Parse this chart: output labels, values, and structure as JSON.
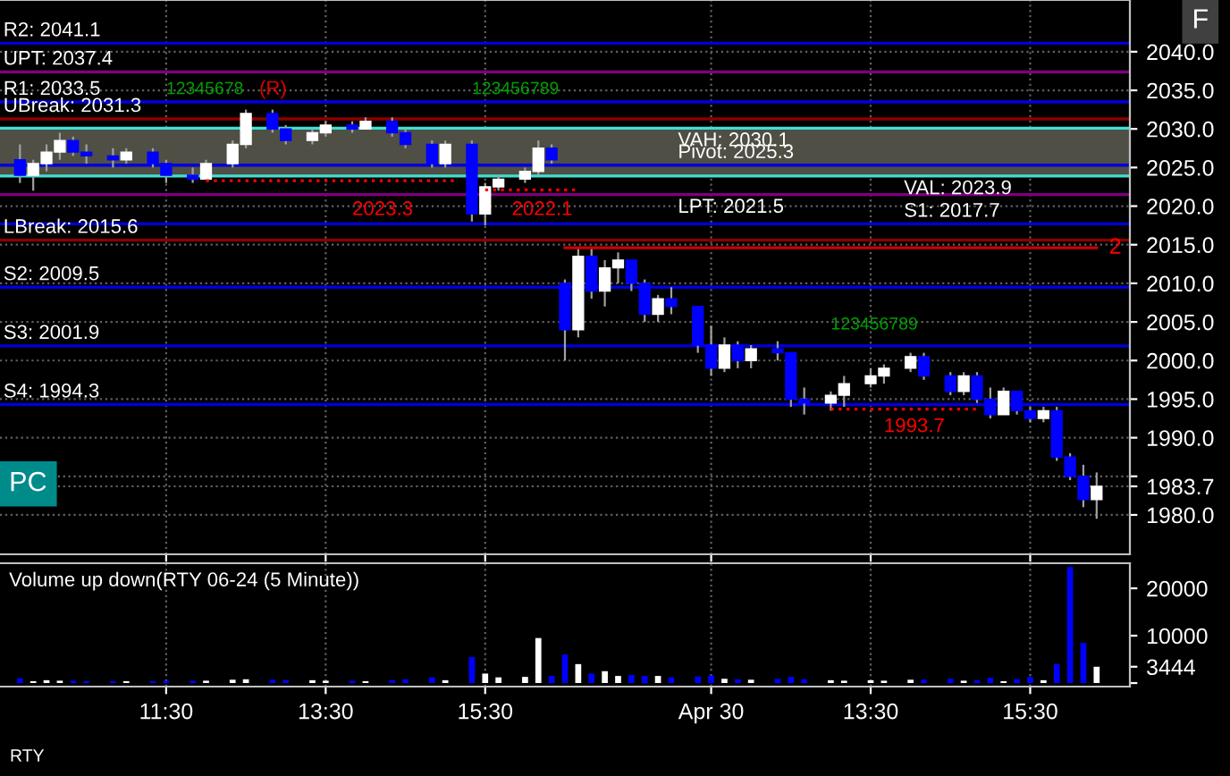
{
  "chart_data": [
    {
      "type": "candlestick",
      "categories": [
        null,
        null,
        null,
        null,
        null,
        null,
        null,
        null,
        null,
        null,
        null,
        null,
        null,
        null,
        null,
        null,
        null,
        null,
        null,
        null,
        null,
        null,
        null,
        null,
        null,
        null,
        null,
        null,
        null,
        null,
        null,
        null,
        null,
        null,
        null,
        null,
        null,
        null,
        null,
        null,
        null,
        null,
        null,
        null,
        null,
        null,
        null,
        null,
        null,
        null,
        null,
        null,
        null,
        null,
        null,
        null,
        null,
        null,
        null,
        null,
        null,
        null,
        null,
        null,
        null,
        null,
        null,
        null,
        null,
        null,
        null,
        null,
        null,
        null,
        null,
        null,
        null,
        null,
        null,
        null,
        null,
        null,
        null,
        null,
        null
      ],
      "ylim": [
        1974.9,
        2046.7
      ],
      "yticks": [
        {
          "value": 1980,
          "label": "1980.0"
        },
        {
          "value": 1983.7,
          "label": "1983.7"
        },
        {
          "value": 1985,
          "label": null
        },
        {
          "value": 1990,
          "label": "1990.0"
        },
        {
          "value": 1995,
          "label": "1995.0"
        },
        {
          "value": 2000,
          "label": "2000.0"
        },
        {
          "value": 2005,
          "label": "2005.0"
        },
        {
          "value": 2010,
          "label": "2010.0"
        },
        {
          "value": 2015,
          "label": "2015.0"
        },
        {
          "value": 2020,
          "label": "2020.0"
        },
        {
          "value": 2025,
          "label": "2025.0"
        },
        {
          "value": 2030,
          "label": "2030.0"
        },
        {
          "value": 2035,
          "label": "2035.0"
        },
        {
          "value": 2040,
          "label": "2040.0"
        }
      ],
      "tick_labels": "y",
      "grid": true,
      "series": [
        {
          "ohlc": [
            null,
            [
              2026,
              2028,
              2023,
              2024
            ],
            [
              2024,
              2026,
              2022,
              2025.5
            ],
            [
              2025.5,
              2028,
              2024.5,
              2027
            ],
            [
              2027,
              2029.5,
              2026,
              2028.5
            ],
            [
              2028.5,
              2029,
              2026.5,
              2027
            ],
            [
              2027,
              2028,
              2025.5,
              2026.5
            ],
            null,
            [
              2026.5,
              2027.5,
              2025,
              2026
            ],
            [
              2026,
              2027.5,
              2025.5,
              2027
            ],
            null,
            [
              2027,
              2027.5,
              2025,
              2025.5
            ],
            [
              2025.5,
              2026,
              2023,
              2024
            ],
            null,
            [
              2024,
              2025,
              2023,
              2023.5
            ],
            [
              2023.5,
              2026,
              2023.5,
              2025.5
            ],
            null,
            [
              2025.5,
              2028.5,
              2025,
              2028
            ],
            [
              2028,
              2032.5,
              2027.5,
              2032
            ],
            null,
            [
              2032,
              2032.5,
              2029.5,
              2030
            ],
            [
              2030,
              2030.5,
              2028,
              2028.5
            ],
            null,
            [
              2028.5,
              2030,
              2028,
              2029.5
            ],
            [
              2029.5,
              2031,
              2029,
              2030.5
            ],
            null,
            [
              2030.5,
              2031,
              2029.5,
              2030
            ],
            [
              2030,
              2031.5,
              2030,
              2031
            ],
            null,
            [
              2031,
              2031.5,
              2029,
              2029.5
            ],
            [
              2029.5,
              2030,
              2027.5,
              2028
            ],
            null,
            [
              2028,
              2028.5,
              2025,
              2025.5
            ],
            [
              2025.5,
              2028.5,
              2025,
              2028
            ],
            null,
            [
              2028,
              2028.5,
              2018,
              2019
            ],
            [
              2019,
              2023,
              2017.5,
              2022.5
            ],
            [
              2022.5,
              2024,
              2022,
              2023.5
            ],
            null,
            [
              2023.5,
              2025,
              2023,
              2024.5
            ],
            [
              2024.5,
              2028.5,
              2024,
              2027.5
            ],
            [
              2027.5,
              2028,
              2025.5,
              2026
            ],
            [
              2010,
              2010.5,
              2000,
              2004
            ],
            [
              2004,
              2014.5,
              2003,
              2013.5
            ],
            [
              2013.5,
              2014.5,
              2008,
              2009
            ],
            [
              2009,
              2013,
              2007,
              2012
            ],
            [
              2012,
              2014,
              2010,
              2013
            ],
            [
              2013,
              2013,
              2009,
              2010
            ],
            [
              2010,
              2010.5,
              2005,
              2006
            ],
            [
              2006,
              2008.5,
              2005,
              2008
            ],
            [
              2008,
              2009.5,
              2006,
              2007
            ],
            null,
            [
              2007,
              2007,
              2001,
              2002
            ],
            [
              2002,
              2004.5,
              1998,
              1999
            ],
            [
              1999,
              2003,
              1998.5,
              2002
            ],
            [
              2002,
              2002.5,
              1999,
              2000
            ],
            [
              2000,
              2002,
              1999,
              2001.5
            ],
            null,
            [
              2001.5,
              2002.5,
              2000,
              2001
            ],
            [
              2001,
              2001,
              1994,
              1995
            ],
            [
              1995,
              1996.5,
              1993,
              1994.5
            ],
            null,
            [
              1994.5,
              1996,
              1993.5,
              1995.5
            ],
            [
              1995.5,
              1998,
              1994,
              1997
            ],
            null,
            [
              1997,
              1999,
              1996.5,
              1998
            ],
            [
              1998,
              1999.5,
              1997,
              1999
            ],
            null,
            [
              1999,
              2001,
              1998.5,
              2000.5
            ],
            [
              2000.5,
              2001,
              1997.5,
              1998
            ],
            null,
            [
              1998,
              1998.5,
              1995.5,
              1996
            ],
            [
              1996,
              1998.5,
              1995.5,
              1998
            ],
            [
              1998,
              1998.5,
              1994.5,
              1995
            ],
            [
              1995,
              1996.5,
              1992.5,
              1993
            ],
            [
              1993,
              1996.5,
              1993,
              1996
            ],
            [
              1996,
              1996,
              1993,
              1993.5
            ],
            [
              1993.5,
              1994,
              1992,
              1992.5
            ],
            [
              1992.5,
              1994,
              1992,
              1993.5
            ],
            [
              1993.5,
              1994,
              1987,
              1987.5
            ],
            [
              1987.5,
              1988,
              1984.5,
              1985
            ],
            [
              1985,
              1986.5,
              1981,
              1982
            ],
            [
              1982,
              1985.5,
              1979.5,
              1983.7
            ],
            null,
            null
          ],
          "colors": [
            null,
            "#0000ff",
            "#ffffff",
            "#ffffff",
            "#ffffff",
            "#0000ff",
            "#0000ff",
            null,
            "#0000ff",
            "#ffffff",
            null,
            "#0000ff",
            "#0000ff",
            null,
            "#0000ff",
            "#ffffff",
            null,
            "#ffffff",
            "#ffffff",
            null,
            "#0000ff",
            "#0000ff",
            null,
            "#ffffff",
            "#ffffff",
            null,
            "#0000ff",
            "#ffffff",
            null,
            "#0000ff",
            "#0000ff",
            null,
            "#0000ff",
            "#ffffff",
            null,
            "#0000ff",
            "#ffffff",
            "#ffffff",
            null,
            "#ffffff",
            "#ffffff",
            "#0000ff",
            "#0000ff",
            "#ffffff",
            "#0000ff",
            "#ffffff",
            "#ffffff",
            "#0000ff",
            "#0000ff",
            "#ffffff",
            "#0000ff",
            null,
            "#0000ff",
            "#0000ff",
            "#ffffff",
            "#0000ff",
            "#ffffff",
            null,
            "#0000ff",
            "#0000ff",
            "#0000ff",
            null,
            "#ffffff",
            "#ffffff",
            null,
            "#ffffff",
            "#ffffff",
            null,
            "#ffffff",
            "#0000ff",
            null,
            "#0000ff",
            "#ffffff",
            "#0000ff",
            "#0000ff",
            "#ffffff",
            "#0000ff",
            "#0000ff",
            "#ffffff",
            "#0000ff",
            "#0000ff",
            "#0000ff",
            "#ffffff",
            null,
            null
          ]
        },
        {
          "type": "line",
          "color": "#cc0000",
          "line_style": "solid",
          "values": [
            null,
            null,
            null,
            null,
            null,
            null,
            null,
            null,
            null,
            null,
            null,
            null,
            null,
            null,
            null,
            null,
            null,
            null,
            null,
            null,
            null,
            null,
            null,
            null,
            null,
            null,
            null,
            null,
            null,
            null,
            null,
            null,
            null,
            null,
            null,
            null,
            null,
            null,
            null,
            null,
            null,
            null,
            2014.6,
            2014.6,
            2014.6,
            2014.6,
            2014.6,
            2014.6,
            2014.6,
            2014.6,
            2014.6,
            2014.6,
            2014.6,
            2014.6,
            2014.6,
            2014.6,
            2014.6,
            2014.6,
            2014.6,
            2014.6,
            2014.6,
            2014.6,
            2014.6,
            2014.6,
            2014.6,
            2014.6,
            2014.6,
            2014.6,
            2014.6,
            2014.6,
            2014.6,
            2014.6,
            2014.6,
            2014.6,
            2014.6,
            2014.6,
            2014.6,
            2014.6,
            2014.6,
            2014.6,
            2014.6,
            2014.6,
            2014.6,
            null,
            null
          ]
        },
        {
          "type": "line",
          "color": "#ff0000",
          "line_style": "dotted",
          "values": [
            null,
            null,
            null,
            null,
            null,
            null,
            null,
            null,
            null,
            null,
            null,
            null,
            null,
            null,
            null,
            2023.3,
            2023.3,
            2023.3,
            2023.3,
            2023.3,
            2023.3,
            2023.3,
            2023.3,
            2023.3,
            2023.3,
            2023.3,
            2023.3,
            2023.3,
            2023.3,
            2023.3,
            2023.3,
            2023.3,
            2023.3,
            2023.3,
            2023.3,
            null,
            null,
            null,
            null,
            null,
            null,
            null,
            null,
            null,
            null,
            null,
            null,
            null,
            null,
            null,
            null,
            null,
            null,
            null,
            null,
            null,
            null,
            null,
            null,
            null,
            null,
            null,
            1993.7,
            1993.7,
            1993.7,
            1993.7,
            1993.7,
            1993.7,
            1993.7,
            1993.7,
            1993.7,
            1993.7,
            1993.7,
            1993.7,
            null,
            null,
            null,
            null,
            null,
            null,
            null,
            null,
            null,
            null,
            null
          ]
        },
        {
          "type": "line",
          "color": "#ff0000",
          "line_style": "dotted",
          "values": [
            null,
            null,
            null,
            null,
            null,
            null,
            null,
            null,
            null,
            null,
            null,
            null,
            null,
            null,
            null,
            null,
            null,
            null,
            null,
            null,
            null,
            null,
            null,
            null,
            null,
            null,
            null,
            null,
            null,
            null,
            null,
            null,
            null,
            null,
            null,
            null,
            2022.1,
            2022.1,
            2022.1,
            2022.1,
            2022.1,
            2022.1,
            2022.1,
            2022.1,
            null,
            null,
            null,
            null,
            null,
            null,
            null,
            null,
            null,
            null,
            null,
            null,
            null,
            null,
            null,
            null,
            null,
            null,
            null,
            null,
            null,
            null,
            null,
            null,
            null,
            null,
            null,
            null,
            null,
            null,
            null,
            null,
            null,
            null,
            null,
            null,
            null,
            null,
            null,
            null,
            null
          ]
        }
      ],
      "bands": [
        {
          "axis": "y",
          "from": 2023.9,
          "to": 2030.1,
          "color": "#4f4f45"
        }
      ],
      "ref_lines": [
        {
          "axis": "y",
          "value": 2041.1,
          "label": "R2: 2041.1",
          "color": "#0000dd"
        },
        {
          "axis": "y",
          "value": 2037.4,
          "label": "UPT: 2037.4",
          "color": "#800080"
        },
        {
          "axis": "y",
          "value": 2033.5,
          "label": "R1: 2033.5",
          "color": "#0000dd"
        },
        {
          "axis": "y",
          "value": 2031.3,
          "label": "UBreak: 2031.3",
          "color": "#8b0000"
        },
        {
          "axis": "y",
          "value": 2030.1,
          "label": "VAH: 2030.1",
          "color": "#40e0d0"
        },
        {
          "axis": "y",
          "value": 2025.3,
          "label": "Pivot: 2025.3",
          "color": "#0000dd"
        },
        {
          "axis": "y",
          "value": 2023.9,
          "label": "VAL: 2023.9",
          "color": "#40e0d0"
        },
        {
          "axis": "y",
          "value": 2021.5,
          "label": "LPT: 2021.5",
          "color": "#800080"
        },
        {
          "axis": "y",
          "value": 2017.7,
          "label": "S1: 2017.7",
          "color": "#0000dd"
        },
        {
          "axis": "y",
          "value": 2015.6,
          "label": "LBreak: 2015.6",
          "color": "#8b0000"
        },
        {
          "axis": "y",
          "value": 2009.5,
          "label": "S2: 2009.5",
          "color": "#0000dd"
        },
        {
          "axis": "y",
          "value": 2001.9,
          "label": "S3: 2001.9",
          "color": "#0000dd"
        },
        {
          "axis": "y",
          "value": 1994.3,
          "label": "S4: 1994.3",
          "color": "#0000dd"
        }
      ],
      "annotations": [
        "PC",
        "F",
        "12345678",
        "(R)",
        "123456789",
        "123456789",
        "2023.3",
        "2022.1",
        "1993.7",
        "2"
      ]
    },
    {
      "type": "bar",
      "title": "Volume up down(RTY 06-24 (5 Minute))",
      "categories": [
        null,
        null,
        null,
        null,
        null,
        null,
        null,
        null,
        null,
        null,
        null,
        null,
        "11:30",
        null,
        null,
        null,
        null,
        null,
        null,
        null,
        null,
        null,
        null,
        null,
        "13:30",
        null,
        null,
        null,
        null,
        null,
        null,
        null,
        null,
        null,
        null,
        null,
        "15:30",
        null,
        null,
        null,
        null,
        null,
        null,
        null,
        null,
        null,
        null,
        null,
        null,
        null,
        null,
        null,
        null,
        "Apr 30",
        null,
        null,
        null,
        null,
        null,
        null,
        null,
        null,
        null,
        null,
        null,
        "13:30",
        null,
        null,
        null,
        null,
        null,
        null,
        null,
        null,
        null,
        null,
        null,
        "15:30",
        null,
        null,
        null,
        null,
        null,
        null,
        null
      ],
      "ylim": [
        -750,
        25300
      ],
      "yticks": [
        {
          "value": 0,
          "label": null
        },
        {
          "value": 3444,
          "label": "3444"
        },
        10000,
        20000
      ],
      "grid": "x",
      "values": [
        null,
        1000,
        400,
        600,
        500,
        500,
        400,
        null,
        400,
        400,
        null,
        400,
        500,
        null,
        500,
        500,
        null,
        700,
        800,
        null,
        700,
        600,
        null,
        600,
        500,
        null,
        500,
        400,
        null,
        600,
        800,
        null,
        1200,
        600,
        null,
        5500,
        2000,
        1200,
        null,
        1300,
        9500,
        1500,
        6000,
        4000,
        2000,
        2500,
        1500,
        1700,
        1500,
        1500,
        1200,
        null,
        1400,
        1600,
        900,
        800,
        700,
        null,
        900,
        1300,
        800,
        null,
        600,
        500,
        null,
        600,
        500,
        null,
        700,
        700,
        null,
        900,
        500,
        600,
        1100,
        400,
        800,
        1300,
        600,
        4000,
        24500,
        8500,
        3444,
        null,
        null
      ],
      "colors": [
        null,
        "#0000ff",
        "#ffffff",
        "#ffffff",
        "#ffffff",
        "#0000ff",
        "#0000ff",
        null,
        "#0000ff",
        "#ffffff",
        null,
        "#0000ff",
        "#0000ff",
        null,
        "#0000ff",
        "#ffffff",
        null,
        "#ffffff",
        "#ffffff",
        null,
        "#0000ff",
        "#0000ff",
        null,
        "#ffffff",
        "#ffffff",
        null,
        "#0000ff",
        "#ffffff",
        null,
        "#0000ff",
        "#0000ff",
        null,
        "#0000ff",
        "#ffffff",
        null,
        "#0000ff",
        "#ffffff",
        "#ffffff",
        null,
        "#ffffff",
        "#ffffff",
        "#0000ff",
        "#0000ff",
        "#ffffff",
        "#0000ff",
        "#ffffff",
        "#ffffff",
        "#0000ff",
        "#0000ff",
        "#ffffff",
        "#0000ff",
        null,
        "#0000ff",
        "#0000ff",
        "#ffffff",
        "#0000ff",
        "#ffffff",
        null,
        "#0000ff",
        "#0000ff",
        "#0000ff",
        null,
        "#ffffff",
        "#ffffff",
        null,
        "#ffffff",
        "#ffffff",
        null,
        "#ffffff",
        "#0000ff",
        null,
        "#0000ff",
        "#ffffff",
        "#0000ff",
        "#0000ff",
        "#ffffff",
        "#0000ff",
        "#0000ff",
        "#ffffff",
        "#0000ff",
        "#0000ff",
        "#0000ff",
        "#ffffff",
        null,
        null
      ],
      "annotations": [
        "RTY"
      ]
    }
  ]
}
